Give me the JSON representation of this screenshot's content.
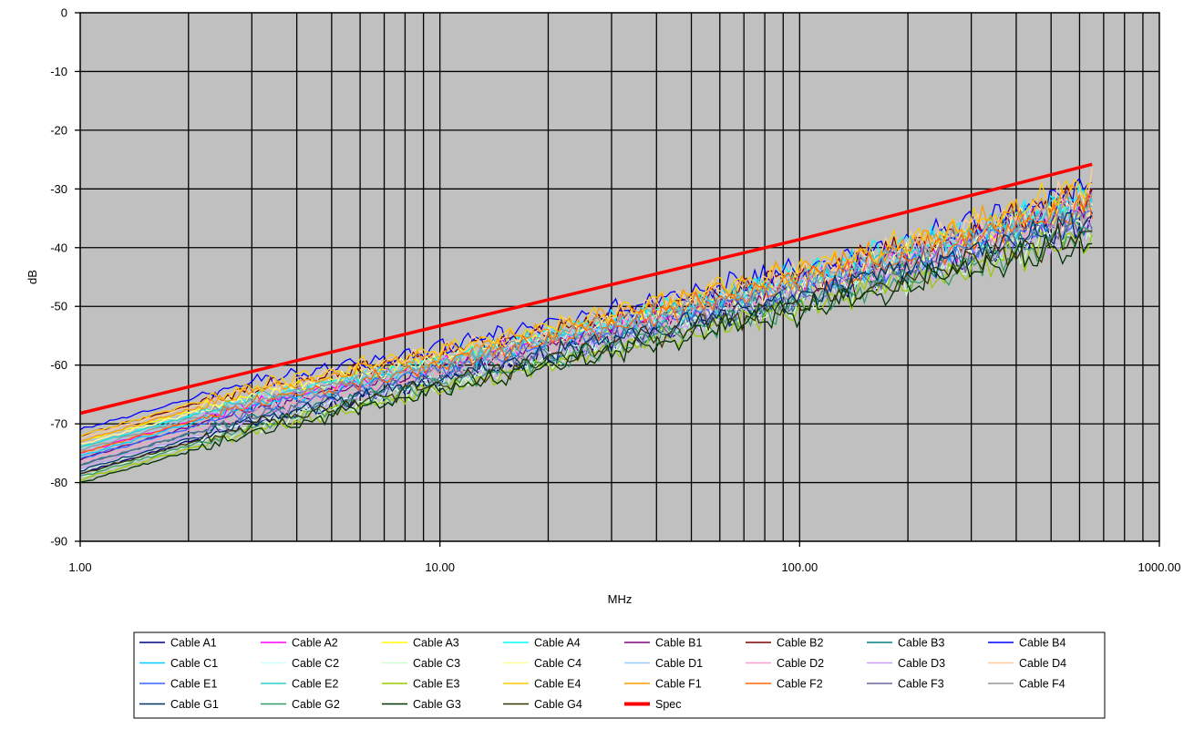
{
  "chart_data": {
    "type": "line",
    "title": "",
    "xlabel": "MHz",
    "ylabel": "dB",
    "x_scale": "log",
    "xlim": [
      1,
      1000
    ],
    "ylim": [
      -90,
      0
    ],
    "x_ticks": [
      1,
      10,
      100,
      1000
    ],
    "x_tick_labels": [
      "1.00",
      "10.00",
      "100.00",
      "1000.00"
    ],
    "y_ticks": [
      0,
      -10,
      -20,
      -30,
      -40,
      -50,
      -60,
      -70,
      -80,
      -90
    ],
    "y_tick_labels": [
      "0",
      "-10",
      "-20",
      "-30",
      "-40",
      "-50",
      "-60",
      "-70",
      "-80",
      "-90"
    ],
    "grid": true,
    "plot_background": "#c0c0c0",
    "legend_position": "bottom",
    "spec": {
      "name": "Spec",
      "color": "#ff0000",
      "x": [
        1,
        10,
        100,
        650
      ],
      "values": [
        -68.2,
        -53.3,
        -38.6,
        -25.8
      ]
    },
    "cable_envelope": {
      "x": [
        1,
        3,
        10,
        30,
        100,
        300,
        650
      ],
      "upper": [
        -71,
        -62,
        -57,
        -51,
        -44,
        -36,
        -28
      ],
      "lower": [
        -80,
        -71,
        -64,
        -58,
        -51,
        -44,
        -39
      ]
    },
    "series": [
      {
        "name": "Cable A1",
        "color": "#000080",
        "start": -78.5,
        "end": -33
      },
      {
        "name": "Cable A2",
        "color": "#ff00ff",
        "start": -75,
        "end": -31
      },
      {
        "name": "Cable A3",
        "color": "#ffff00",
        "start": -73,
        "end": -37
      },
      {
        "name": "Cable A4",
        "color": "#00ffff",
        "start": -74,
        "end": -29
      },
      {
        "name": "Cable B1",
        "color": "#800080",
        "start": -76,
        "end": -30
      },
      {
        "name": "Cable B2",
        "color": "#800000",
        "start": -72,
        "end": -34
      },
      {
        "name": "Cable B3",
        "color": "#008080",
        "start": -77,
        "end": -36
      },
      {
        "name": "Cable B4",
        "color": "#0000ff",
        "start": -71,
        "end": -32
      },
      {
        "name": "Cable C1",
        "color": "#00ccff",
        "start": -75.5,
        "end": -28.5
      },
      {
        "name": "Cable C2",
        "color": "#ccffff",
        "start": -78,
        "end": -33
      },
      {
        "name": "Cable C3",
        "color": "#ccffcc",
        "start": -79,
        "end": -36
      },
      {
        "name": "Cable C4",
        "color": "#ffff99",
        "start": -73.5,
        "end": -35
      },
      {
        "name": "Cable D1",
        "color": "#99ccff",
        "start": -74.5,
        "end": -31
      },
      {
        "name": "Cable D2",
        "color": "#ff99cc",
        "start": -76.5,
        "end": -32
      },
      {
        "name": "Cable D3",
        "color": "#cc99ff",
        "start": -77.5,
        "end": -38
      },
      {
        "name": "Cable D4",
        "color": "#ffcc99",
        "start": -72.5,
        "end": -30
      },
      {
        "name": "Cable E1",
        "color": "#3366ff",
        "start": -76,
        "end": -33.5
      },
      {
        "name": "Cable E2",
        "color": "#33cccc",
        "start": -74,
        "end": -34
      },
      {
        "name": "Cable E3",
        "color": "#99cc00",
        "start": -79.5,
        "end": -37.5
      },
      {
        "name": "Cable E4",
        "color": "#ffcc00",
        "start": -72,
        "end": -29.5
      },
      {
        "name": "Cable F1",
        "color": "#ff9900",
        "start": -73,
        "end": -29
      },
      {
        "name": "Cable F2",
        "color": "#ff6600",
        "start": -75,
        "end": -31.5
      },
      {
        "name": "Cable F3",
        "color": "#666699",
        "start": -77,
        "end": -35.5
      },
      {
        "name": "Cable F4",
        "color": "#969696",
        "start": -74.5,
        "end": -33
      },
      {
        "name": "Cable G1",
        "color": "#003366",
        "start": -78,
        "end": -32.5
      },
      {
        "name": "Cable G2",
        "color": "#339966",
        "start": -79,
        "end": -36.5
      },
      {
        "name": "Cable G3",
        "color": "#003300",
        "start": -80,
        "end": -38
      },
      {
        "name": "Cable G4",
        "color": "#333300",
        "start": -78.5,
        "end": -37
      }
    ]
  }
}
